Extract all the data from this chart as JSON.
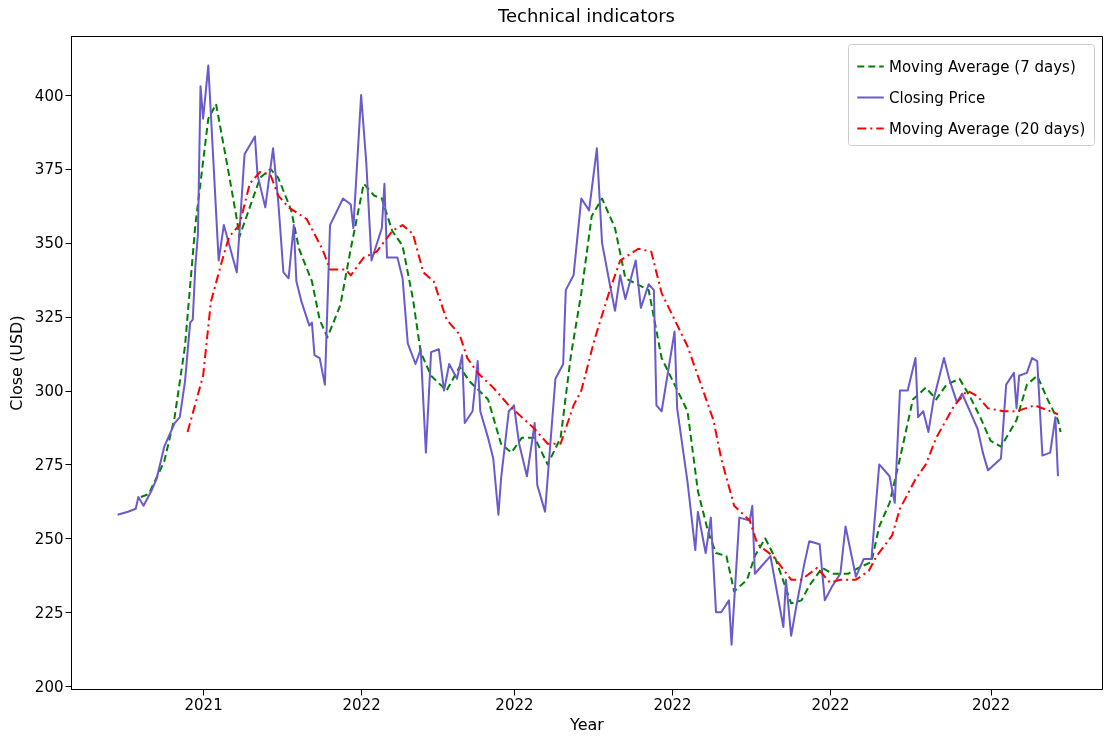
{
  "chart_data": {
    "type": "line",
    "title": "Technical indicators",
    "xlabel": "Year",
    "ylabel": "Close (USD)",
    "xlim": [
      "2021-09-11",
      "2022-10-14"
    ],
    "ylim": [
      199,
      420
    ],
    "xticks": [
      {
        "value": "2021-11-01",
        "label": "2021"
      },
      {
        "value": "2022-01-01",
        "label": "2022"
      },
      {
        "value": "2022-03-01",
        "label": "2022"
      },
      {
        "value": "2022-05-01",
        "label": "2022"
      },
      {
        "value": "2022-07-01",
        "label": "2022"
      },
      {
        "value": "2022-09-01",
        "label": "2022"
      }
    ],
    "yticks": [
      200,
      225,
      250,
      275,
      300,
      325,
      350,
      375,
      400
    ],
    "grid": false,
    "legend": "top right",
    "series": [
      {
        "name": "Moving Average (7 days)",
        "color": "#008000",
        "line_style": "dashed",
        "x": [
          "2021-10-08",
          "2021-10-11",
          "2021-10-17",
          "2021-10-21",
          "2021-10-25",
          "2021-10-29",
          "2021-11-03",
          "2021-11-06",
          "2021-11-11",
          "2021-11-14",
          "2021-11-15",
          "2021-11-19",
          "2021-11-23",
          "2021-11-27",
          "2021-11-30",
          "2021-12-05",
          "2021-12-08",
          "2021-12-13",
          "2021-12-16",
          "2021-12-19",
          "2021-12-24",
          "2021-12-28",
          "2022-01-02",
          "2022-01-06",
          "2022-01-09",
          "2022-01-13",
          "2022-01-17",
          "2022-01-21",
          "2022-01-24",
          "2022-01-28",
          "2022-02-03",
          "2022-02-08",
          "2022-02-12",
          "2022-02-19",
          "2022-02-24",
          "2022-02-28",
          "2022-03-04",
          "2022-03-09",
          "2022-03-14",
          "2022-03-19",
          "2022-03-23",
          "2022-03-27",
          "2022-03-31",
          "2022-04-04",
          "2022-04-09",
          "2022-04-13",
          "2022-04-22",
          "2022-04-27",
          "2022-05-02",
          "2022-05-07",
          "2022-05-11",
          "2022-05-15",
          "2022-05-18",
          "2022-05-22",
          "2022-05-25",
          "2022-05-30",
          "2022-06-02",
          "2022-06-06",
          "2022-06-10",
          "2022-06-16",
          "2022-06-20",
          "2022-06-23",
          "2022-06-28",
          "2022-07-02",
          "2022-07-08",
          "2022-07-12",
          "2022-07-17",
          "2022-07-20",
          "2022-07-24",
          "2022-07-28",
          "2022-08-02",
          "2022-08-07",
          "2022-08-11",
          "2022-08-15",
          "2022-08-20",
          "2022-08-24",
          "2022-08-28",
          "2022-09-01",
          "2022-09-05",
          "2022-09-11",
          "2022-09-15",
          "2022-09-19",
          "2022-09-23",
          "2022-09-27",
          "2022-09-28"
        ],
        "values": [
          264,
          265,
          276,
          291,
          315,
          356,
          392,
          397,
          373,
          358,
          352,
          362,
          372,
          375,
          372,
          361,
          348,
          337,
          324,
          318,
          329,
          348,
          370,
          366,
          365,
          354,
          349,
          331,
          313,
          305,
          300,
          308,
          303,
          297,
          282,
          279,
          284,
          284,
          275,
          284,
          312,
          333,
          359,
          365,
          355,
          338,
          334,
          311,
          302,
          293,
          266,
          252,
          245,
          244,
          232,
          236,
          244,
          250,
          243,
          228,
          229,
          234,
          240,
          238,
          238,
          240,
          242,
          254,
          262,
          277,
          297,
          301,
          297,
          302,
          304,
          298,
          291,
          283,
          281,
          290,
          302,
          305,
          297,
          290,
          286
        ]
      },
      {
        "name": "Closing Price",
        "color": "#6a5acd",
        "line_style": "solid",
        "x": [
          "2021-09-29",
          "2021-10-03",
          "2021-10-06",
          "2021-10-07",
          "2021-10-09",
          "2021-10-12",
          "2021-10-14",
          "2021-10-17",
          "2021-10-21",
          "2021-10-23",
          "2021-10-25",
          "2021-10-27",
          "2021-10-28",
          "2021-10-29",
          "2021-10-30",
          "2021-10-31",
          "2021-11-01",
          "2021-11-03",
          "2021-11-07",
          "2021-11-09",
          "2021-11-14",
          "2021-11-17",
          "2021-11-21",
          "2021-11-22",
          "2021-11-25",
          "2021-11-28",
          "2021-11-30",
          "2021-12-02",
          "2021-12-04",
          "2021-12-06",
          "2021-12-07",
          "2021-12-09",
          "2021-12-12",
          "2021-12-13",
          "2021-12-14",
          "2021-12-16",
          "2021-12-18",
          "2021-12-20",
          "2021-12-25",
          "2021-12-28",
          "2021-12-29",
          "2022-01-01",
          "2022-01-03",
          "2022-01-05",
          "2022-01-09",
          "2022-01-10",
          "2022-01-11",
          "2022-01-15",
          "2022-01-17",
          "2022-01-19",
          "2022-01-22",
          "2022-01-24",
          "2022-01-26",
          "2022-01-28",
          "2022-01-31",
          "2022-02-02",
          "2022-02-04",
          "2022-02-07",
          "2022-02-09",
          "2022-02-10",
          "2022-02-13",
          "2022-02-15",
          "2022-02-16",
          "2022-02-19",
          "2022-02-21",
          "2022-02-23",
          "2022-02-24",
          "2022-02-27",
          "2022-03-01",
          "2022-03-03",
          "2022-03-06",
          "2022-03-09",
          "2022-03-10",
          "2022-03-13",
          "2022-03-17",
          "2022-03-20",
          "2022-03-21",
          "2022-03-24",
          "2022-03-27",
          "2022-03-30",
          "2022-04-02",
          "2022-04-04",
          "2022-04-07",
          "2022-04-09",
          "2022-04-11",
          "2022-04-13",
          "2022-04-17",
          "2022-04-19",
          "2022-04-22",
          "2022-04-24",
          "2022-04-25",
          "2022-04-27",
          "2022-05-02",
          "2022-05-03",
          "2022-05-07",
          "2022-05-10",
          "2022-05-11",
          "2022-05-14",
          "2022-05-16",
          "2022-05-18",
          "2022-05-20",
          "2022-05-23",
          "2022-05-24",
          "2022-05-27",
          "2022-05-31",
          "2022-06-01",
          "2022-06-02",
          "2022-06-08",
          "2022-06-13",
          "2022-06-14",
          "2022-06-16",
          "2022-06-18",
          "2022-06-21",
          "2022-06-23",
          "2022-06-27",
          "2022-06-29",
          "2022-07-02",
          "2022-07-05",
          "2022-07-07",
          "2022-07-11",
          "2022-07-14",
          "2022-07-17",
          "2022-07-20",
          "2022-07-24",
          "2022-07-26",
          "2022-07-28",
          "2022-07-31",
          "2022-08-03",
          "2022-08-04",
          "2022-08-06",
          "2022-08-08",
          "2022-08-10",
          "2022-08-14",
          "2022-08-16",
          "2022-08-19",
          "2022-08-21",
          "2022-08-25",
          "2022-08-27",
          "2022-08-29",
          "2022-08-31",
          "2022-09-05",
          "2022-09-07",
          "2022-09-10",
          "2022-09-11",
          "2022-09-12",
          "2022-09-15",
          "2022-09-17",
          "2022-09-19",
          "2022-09-21",
          "2022-09-24",
          "2022-09-26",
          "2022-09-27"
        ],
        "values": [
          258,
          259,
          260,
          264,
          261,
          266,
          270,
          281,
          289,
          291,
          303,
          323,
          324,
          342,
          353,
          403,
          392,
          410,
          344,
          356,
          340,
          380,
          386,
          373,
          362,
          382,
          364,
          340,
          338,
          356,
          337,
          330,
          322,
          323,
          312,
          311,
          302,
          356,
          365,
          363,
          355,
          400,
          377,
          344,
          355,
          370,
          345,
          345,
          338,
          316,
          309,
          314,
          279,
          313,
          314,
          300,
          309,
          304,
          312,
          289,
          293,
          310,
          293,
          284,
          277,
          258,
          270,
          293,
          295,
          282,
          271,
          289,
          268,
          259,
          304,
          309,
          334,
          339,
          365,
          361,
          382,
          350,
          336,
          327,
          339,
          331,
          344,
          328,
          336,
          334,
          295,
          293,
          320,
          294,
          269,
          246,
          259,
          245,
          257,
          225,
          225,
          229,
          214,
          257,
          256,
          261,
          238,
          244,
          220,
          236,
          217,
          227,
          241,
          249,
          248,
          229,
          234,
          238,
          254,
          237,
          243,
          243,
          275,
          271,
          262,
          300,
          300,
          311,
          291,
          293,
          286,
          297,
          311,
          304,
          296,
          299,
          291,
          287,
          279,
          273,
          277,
          302,
          306,
          294,
          305,
          306,
          311,
          310,
          278,
          279,
          291,
          271
        ]
      },
      {
        "name": "Moving Average (20 days)",
        "color": "#ff0000",
        "line_style": "dashdot",
        "x": [
          "2021-10-26",
          "2021-11-01",
          "2021-11-04",
          "2021-11-08",
          "2021-11-11",
          "2021-11-15",
          "2021-11-19",
          "2021-11-23",
          "2021-11-27",
          "2021-11-30",
          "2021-12-04",
          "2021-12-11",
          "2021-12-17",
          "2021-12-20",
          "2021-12-26",
          "2021-12-28",
          "2022-01-02",
          "2022-01-07",
          "2022-01-13",
          "2022-01-17",
          "2022-01-21",
          "2022-01-25",
          "2022-01-29",
          "2022-02-03",
          "2022-02-08",
          "2022-02-11",
          "2022-02-15",
          "2022-02-21",
          "2022-02-27",
          "2022-03-09",
          "2022-03-14",
          "2022-03-19",
          "2022-03-24",
          "2022-03-27",
          "2022-04-01",
          "2022-04-07",
          "2022-04-11",
          "2022-04-18",
          "2022-04-23",
          "2022-04-27",
          "2022-05-02",
          "2022-05-07",
          "2022-05-13",
          "2022-05-17",
          "2022-05-20",
          "2022-05-25",
          "2022-05-31",
          "2022-06-03",
          "2022-06-09",
          "2022-06-16",
          "2022-06-20",
          "2022-06-26",
          "2022-07-01",
          "2022-07-05",
          "2022-07-11",
          "2022-07-16",
          "2022-07-19",
          "2022-07-25",
          "2022-07-28",
          "2022-08-03",
          "2022-08-07",
          "2022-08-11",
          "2022-08-18",
          "2022-08-23",
          "2022-08-27",
          "2022-08-31",
          "2022-09-06",
          "2022-09-11",
          "2022-09-18",
          "2022-09-27"
        ],
        "values": [
          286,
          305,
          330,
          343,
          352,
          356,
          370,
          374,
          373,
          366,
          362,
          358,
          348,
          341,
          341,
          339,
          345,
          347,
          354,
          356,
          353,
          340,
          337,
          324,
          319,
          311,
          306,
          301,
          295,
          287,
          282,
          282,
          295,
          300,
          317,
          334,
          344,
          348,
          347,
          333,
          324,
          315,
          300,
          290,
          277,
          261,
          256,
          248,
          244,
          236,
          236,
          240,
          235,
          236,
          236,
          239,
          244,
          251,
          260,
          270,
          275,
          284,
          295,
          300,
          298,
          294,
          293,
          293,
          295,
          292
        ]
      }
    ]
  }
}
